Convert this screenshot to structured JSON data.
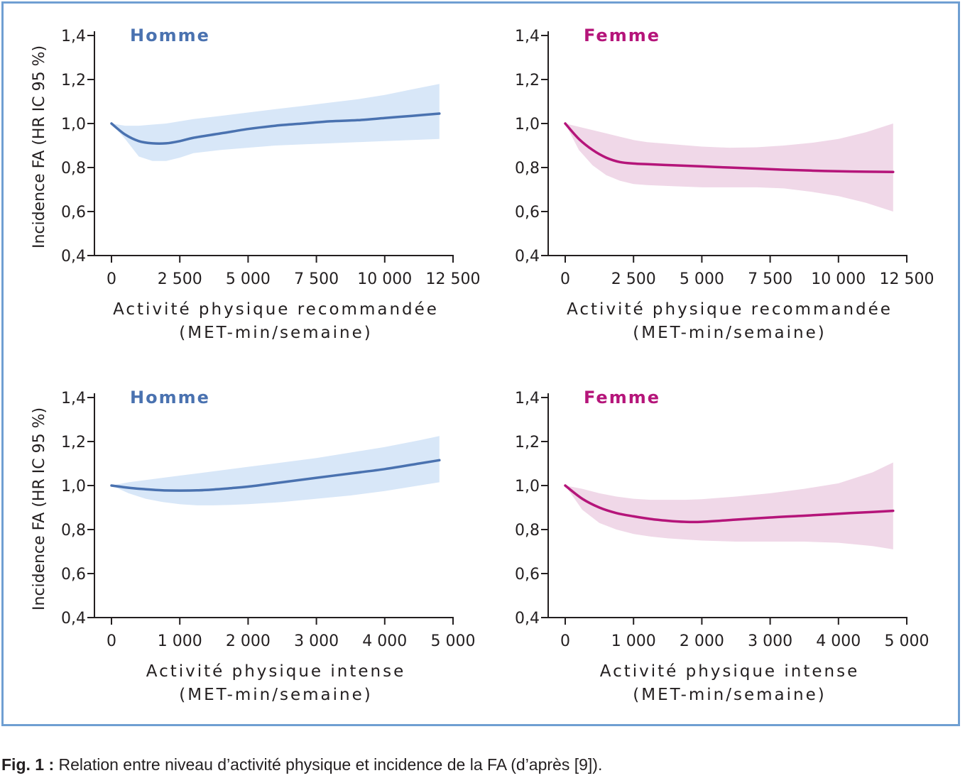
{
  "caption": {
    "label": "Fig. 1 :",
    "text": "Relation entre niveau d’activité physique et incidence de la FA (d’après [9])."
  },
  "colors": {
    "homme": "#4a72b0",
    "homme_band": "#d8e7f8",
    "femme": "#b5157a",
    "femme_band": "#f0d8e8",
    "frame": "#6f9fd2"
  },
  "chart_data": [
    {
      "type": "line",
      "title": "Homme",
      "ylabel": "Incidence FA (HR IC 95 %)",
      "xlabel": [
        "Activité physique recommandée",
        "(MET-min/semaine)"
      ],
      "xlim": [
        0,
        12500
      ],
      "ylim": [
        0.4,
        1.4
      ],
      "xticks": [
        0,
        2500,
        5000,
        7500,
        10000,
        12500
      ],
      "xticklabels": [
        "0",
        "2 500",
        "5 000",
        "7 500",
        "10 000",
        "12 500"
      ],
      "yticks": [
        0.4,
        0.6,
        0.8,
        1.0,
        1.2,
        1.4
      ],
      "yticklabels": [
        "0,4",
        "0,6",
        "0,8",
        "1,0",
        "1,2",
        "1,4"
      ],
      "series": [
        {
          "x": [
            0,
            500,
            1000,
            1500,
            2000,
            2500,
            3000,
            4000,
            5000,
            6000,
            7000,
            8000,
            9000,
            10000,
            11000,
            12000
          ],
          "y": [
            1.0,
            0.95,
            0.92,
            0.91,
            0.91,
            0.92,
            0.935,
            0.955,
            0.975,
            0.99,
            1.0,
            1.01,
            1.015,
            1.025,
            1.035,
            1.045
          ],
          "lower": [
            1.0,
            0.93,
            0.85,
            0.83,
            0.83,
            0.845,
            0.865,
            0.88,
            0.89,
            0.9,
            0.905,
            0.91,
            0.915,
            0.92,
            0.925,
            0.93
          ],
          "upper": [
            1.0,
            0.99,
            0.99,
            0.995,
            1.0,
            1.01,
            1.02,
            1.035,
            1.05,
            1.065,
            1.08,
            1.095,
            1.11,
            1.13,
            1.155,
            1.18
          ]
        }
      ]
    },
    {
      "type": "line",
      "title": "Femme",
      "ylabel": "",
      "xlabel": [
        "Activité physique recommandée",
        "(MET-min/semaine)"
      ],
      "xlim": [
        0,
        12500
      ],
      "ylim": [
        0.4,
        1.4
      ],
      "xticks": [
        0,
        2500,
        5000,
        7500,
        10000,
        12500
      ],
      "xticklabels": [
        "0",
        "2 500",
        "5 000",
        "7 500",
        "10 000",
        "12 500"
      ],
      "yticks": [
        0.4,
        0.6,
        0.8,
        1.0,
        1.2,
        1.4
      ],
      "yticklabels": [
        "0,4",
        "0,6",
        "0,8",
        "1,0",
        "1,2",
        "1,4"
      ],
      "series": [
        {
          "x": [
            0,
            500,
            1000,
            1500,
            2000,
            2500,
            3000,
            4000,
            5000,
            6000,
            7000,
            8000,
            9000,
            10000,
            11000,
            12000
          ],
          "y": [
            1.0,
            0.93,
            0.88,
            0.845,
            0.825,
            0.818,
            0.815,
            0.81,
            0.805,
            0.8,
            0.795,
            0.79,
            0.786,
            0.783,
            0.781,
            0.78
          ],
          "lower": [
            1.0,
            0.88,
            0.81,
            0.765,
            0.74,
            0.725,
            0.72,
            0.715,
            0.71,
            0.71,
            0.71,
            0.705,
            0.69,
            0.67,
            0.64,
            0.6
          ],
          "upper": [
            1.0,
            0.985,
            0.97,
            0.955,
            0.94,
            0.925,
            0.915,
            0.905,
            0.895,
            0.89,
            0.892,
            0.9,
            0.912,
            0.93,
            0.96,
            1.0
          ]
        }
      ]
    },
    {
      "type": "line",
      "title": "Homme",
      "ylabel": "Incidence FA (HR IC 95 %)",
      "xlabel": [
        "Activité physique intense",
        "(MET-min/semaine)"
      ],
      "xlim": [
        0,
        5000
      ],
      "ylim": [
        0.4,
        1.4
      ],
      "xticks": [
        0,
        1000,
        2000,
        3000,
        4000,
        5000
      ],
      "xticklabels": [
        "0",
        "1 000",
        "2 000",
        "3 000",
        "4 000",
        "5 000"
      ],
      "yticks": [
        0.4,
        0.6,
        0.8,
        1.0,
        1.2,
        1.4
      ],
      "yticklabels": [
        "0,4",
        "0,6",
        "0,8",
        "1,0",
        "1,2",
        "1,4"
      ],
      "series": [
        {
          "x": [
            0,
            250,
            500,
            750,
            1000,
            1250,
            1500,
            1750,
            2000,
            2500,
            3000,
            3500,
            4000,
            4500,
            4800
          ],
          "y": [
            1.0,
            0.99,
            0.983,
            0.978,
            0.977,
            0.978,
            0.982,
            0.988,
            0.995,
            1.015,
            1.035,
            1.055,
            1.075,
            1.1,
            1.115
          ],
          "lower": [
            1.0,
            0.965,
            0.94,
            0.925,
            0.915,
            0.91,
            0.91,
            0.912,
            0.915,
            0.925,
            0.94,
            0.955,
            0.975,
            1.0,
            1.015
          ],
          "upper": [
            1.0,
            1.015,
            1.025,
            1.035,
            1.045,
            1.055,
            1.065,
            1.075,
            1.085,
            1.105,
            1.125,
            1.15,
            1.175,
            1.205,
            1.225
          ]
        }
      ]
    },
    {
      "type": "line",
      "title": "Femme",
      "ylabel": "",
      "xlabel": [
        "Activité physique intense",
        "(MET-min/semaine)"
      ],
      "xlim": [
        0,
        5000
      ],
      "ylim": [
        0.4,
        1.4
      ],
      "xticks": [
        0,
        1000,
        2000,
        3000,
        4000,
        5000
      ],
      "xticklabels": [
        "0",
        "1 000",
        "2 000",
        "3 000",
        "4 000",
        "5 000"
      ],
      "yticks": [
        0.4,
        0.6,
        0.8,
        1.0,
        1.2,
        1.4
      ],
      "yticklabels": [
        "0,4",
        "0,6",
        "0,8",
        "1,0",
        "1,2",
        "1,4"
      ],
      "series": [
        {
          "x": [
            0,
            250,
            500,
            750,
            1000,
            1250,
            1500,
            1750,
            2000,
            2500,
            3000,
            3500,
            4000,
            4500,
            4800
          ],
          "y": [
            1.0,
            0.94,
            0.9,
            0.875,
            0.86,
            0.848,
            0.84,
            0.835,
            0.835,
            0.845,
            0.855,
            0.863,
            0.872,
            0.88,
            0.885
          ],
          "lower": [
            1.0,
            0.89,
            0.83,
            0.8,
            0.78,
            0.768,
            0.76,
            0.755,
            0.75,
            0.745,
            0.745,
            0.745,
            0.74,
            0.725,
            0.71
          ],
          "upper": [
            1.0,
            0.985,
            0.965,
            0.95,
            0.94,
            0.935,
            0.935,
            0.935,
            0.938,
            0.95,
            0.965,
            0.985,
            1.01,
            1.06,
            1.105
          ]
        }
      ]
    }
  ]
}
